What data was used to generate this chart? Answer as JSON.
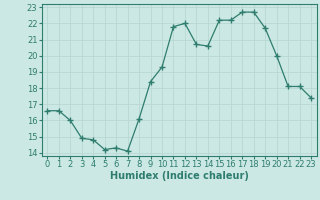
{
  "x": [
    0,
    1,
    2,
    3,
    4,
    5,
    6,
    7,
    8,
    9,
    10,
    11,
    12,
    13,
    14,
    15,
    16,
    17,
    18,
    19,
    20,
    21,
    22,
    23
  ],
  "y": [
    16.6,
    16.6,
    16.0,
    14.9,
    14.8,
    14.2,
    14.3,
    14.1,
    16.1,
    18.4,
    19.3,
    21.8,
    22.0,
    20.7,
    20.6,
    22.2,
    22.2,
    22.7,
    22.7,
    21.7,
    20.0,
    18.1,
    18.1,
    17.4
  ],
  "line_color": "#2e7d6e",
  "marker": "+",
  "marker_size": 4,
  "marker_linewidth": 1.0,
  "bg_color": "#cce8e4",
  "grid_color": "#b8d8d4",
  "tick_color": "#2e7d6e",
  "xlabel": "Humidex (Indice chaleur)",
  "xlim": [
    -0.5,
    23.5
  ],
  "ylim": [
    13.8,
    23.2
  ],
  "yticks": [
    14,
    15,
    16,
    17,
    18,
    19,
    20,
    21,
    22,
    23
  ],
  "xticks": [
    0,
    1,
    2,
    3,
    4,
    5,
    6,
    7,
    8,
    9,
    10,
    11,
    12,
    13,
    14,
    15,
    16,
    17,
    18,
    19,
    20,
    21,
    22,
    23
  ],
  "font_size": 6,
  "label_font_size": 7
}
